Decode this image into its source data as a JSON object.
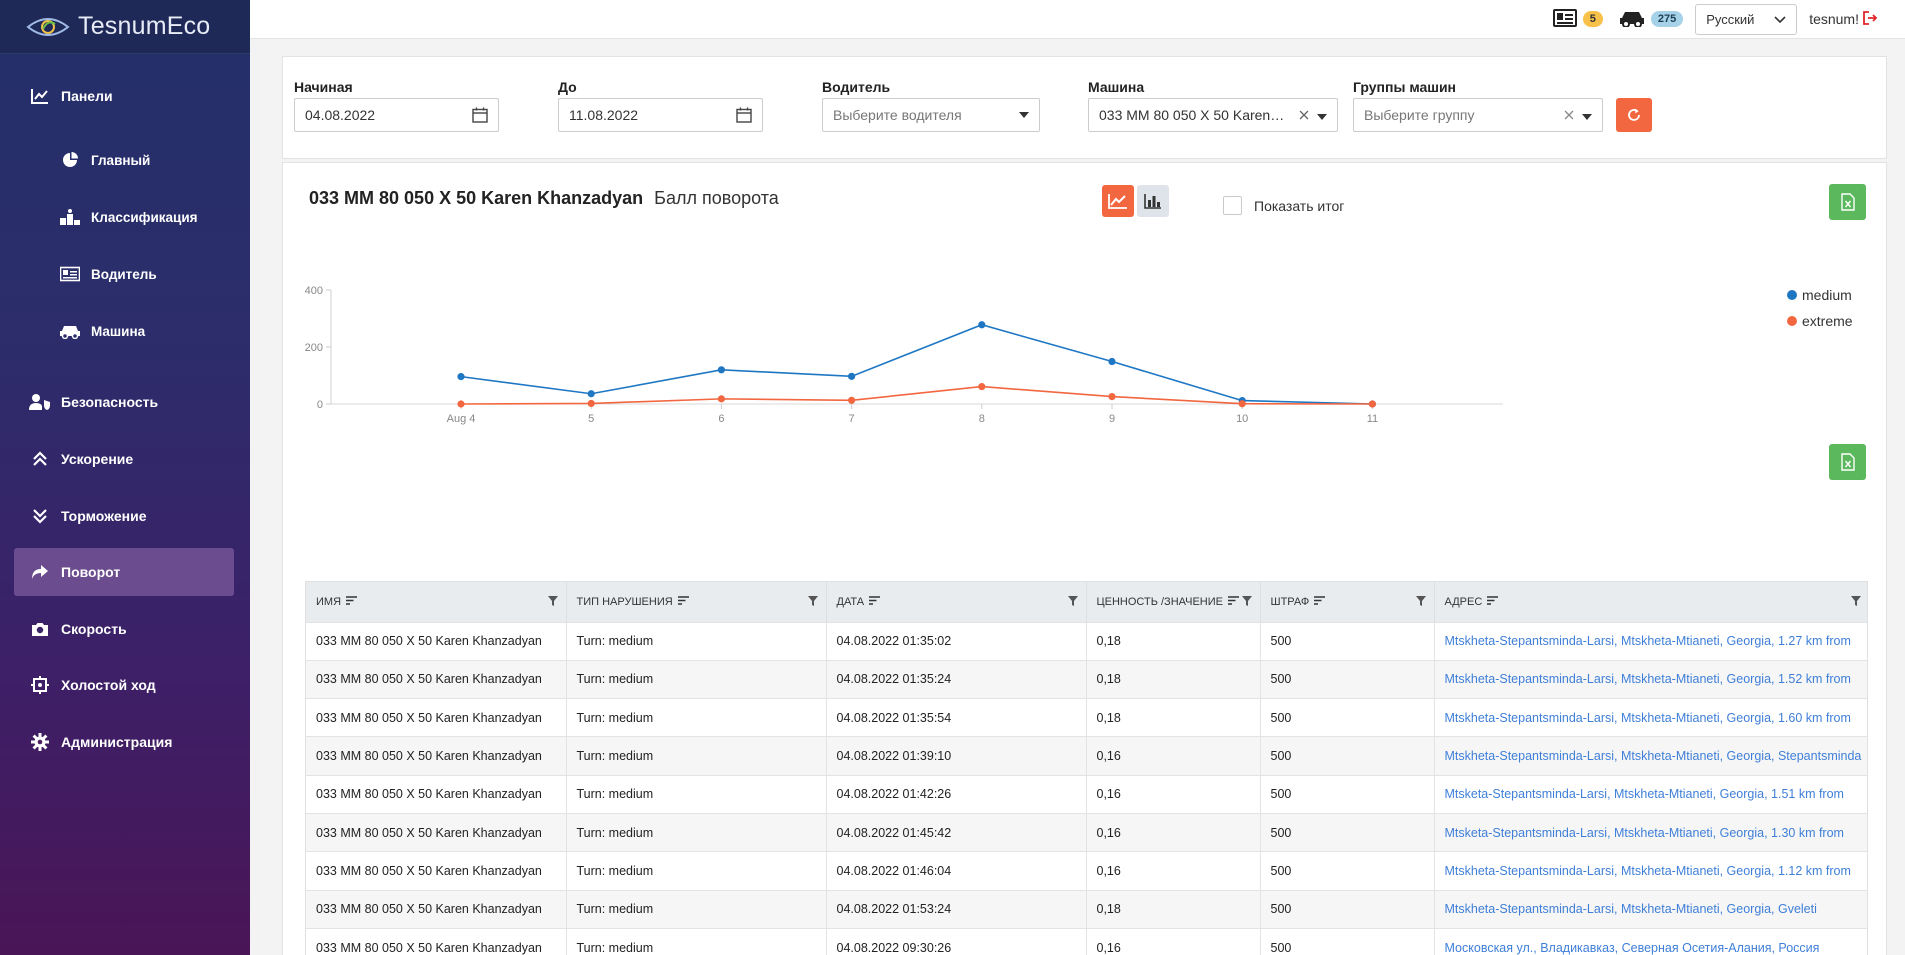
{
  "app": {
    "logo_text": "TesnumEco"
  },
  "sidebar": {
    "items": [
      {
        "label": "Панели",
        "icon": "chart-line-icon"
      },
      {
        "label": "Главный",
        "icon": "pie-chart-icon"
      },
      {
        "label": "Классификация",
        "icon": "podium-icon"
      },
      {
        "label": "Водитель",
        "icon": "id-card-icon"
      },
      {
        "label": "Машина",
        "icon": "car-icon"
      },
      {
        "label": "Безопасность",
        "icon": "user-shield-icon"
      },
      {
        "label": "Ускорение",
        "icon": "double-chevron-up-icon"
      },
      {
        "label": "Торможение",
        "icon": "double-chevron-down-icon"
      },
      {
        "label": "Поворот",
        "icon": "share-arrow-icon",
        "active": true
      },
      {
        "label": "Скорость",
        "icon": "camera-icon"
      },
      {
        "label": "Холостой ход",
        "icon": "idle-icon"
      },
      {
        "label": "Администрация",
        "icon": "gear-icon"
      }
    ]
  },
  "topbar": {
    "drivers_count": "5",
    "cars_count": "275",
    "language": "Русский",
    "username": "tesnum!"
  },
  "filters": {
    "start_label": "Начиная",
    "start_value": "04.08.2022",
    "end_label": "До",
    "end_value": "11.08.2022",
    "driver_label": "Водитель",
    "driver_placeholder": "Выберите водителя",
    "car_label": "Машина",
    "car_value": "033 MM 80 050 X 50 Karen…",
    "groups_label": "Группы машин",
    "groups_placeholder": "Выберите группу"
  },
  "chart_header": {
    "title_bold": "033 MM 80 050 X 50 Karen Khanzadyan",
    "title_sub": "Балл поворота",
    "show_total_label": "Показать итог"
  },
  "chart_data": {
    "type": "line",
    "categories": [
      "Aug 4",
      "5",
      "6",
      "7",
      "8",
      "9",
      "10",
      "11"
    ],
    "series": [
      {
        "name": "medium",
        "color": "#1f77c4",
        "values": [
          96,
          36,
          120,
          97,
          278,
          149,
          12,
          0
        ]
      },
      {
        "name": "extreme",
        "color": "#f26740",
        "values": [
          0,
          2,
          18,
          13,
          61,
          26,
          1,
          0
        ]
      }
    ],
    "yticks": [
      0,
      200,
      400
    ],
    "ylim": [
      0,
      400
    ],
    "legend_position": "right",
    "grid": false
  },
  "table": {
    "headers": [
      "Имя",
      "Тип нарушения",
      "Дата",
      "Ценность /Значение",
      "Штраф",
      "Адрес"
    ],
    "rows": [
      [
        "033 MM 80 050 X 50 Karen Khanzadyan",
        "Turn: medium",
        "04.08.2022 01:35:02",
        "0,18",
        "500",
        "Mtskheta-Stepantsminda-Larsi, Mtskheta-Mtianeti, Georgia, 1.27 km from"
      ],
      [
        "033 MM 80 050 X 50 Karen Khanzadyan",
        "Turn: medium",
        "04.08.2022 01:35:24",
        "0,18",
        "500",
        "Mtskheta-Stepantsminda-Larsi, Mtskheta-Mtianeti, Georgia, 1.52 km from"
      ],
      [
        "033 MM 80 050 X 50 Karen Khanzadyan",
        "Turn: medium",
        "04.08.2022 01:35:54",
        "0,18",
        "500",
        "Mtskheta-Stepantsminda-Larsi, Mtskheta-Mtianeti, Georgia, 1.60 km from"
      ],
      [
        "033 MM 80 050 X 50 Karen Khanzadyan",
        "Turn: medium",
        "04.08.2022 01:39:10",
        "0,16",
        "500",
        "Mtskheta-Stepantsminda-Larsi, Mtskheta-Mtianeti, Georgia, Stepantsminda"
      ],
      [
        "033 MM 80 050 X 50 Karen Khanzadyan",
        "Turn: medium",
        "04.08.2022 01:42:26",
        "0,16",
        "500",
        "Mtsketa-Stepantsminda-Larsi, Mtskheta-Mtianeti, Georgia, 1.51 km from"
      ],
      [
        "033 MM 80 050 X 50 Karen Khanzadyan",
        "Turn: medium",
        "04.08.2022 01:45:42",
        "0,16",
        "500",
        "Mtsketa-Stepantsminda-Larsi, Mtskheta-Mtianeti, Georgia, 1.30 km from"
      ],
      [
        "033 MM 80 050 X 50 Karen Khanzadyan",
        "Turn: medium",
        "04.08.2022 01:46:04",
        "0,16",
        "500",
        "Mtskheta-Stepantsminda-Larsi, Mtskheta-Mtianeti, Georgia, 1.12 km from"
      ],
      [
        "033 MM 80 050 X 50 Karen Khanzadyan",
        "Turn: medium",
        "04.08.2022 01:53:24",
        "0,18",
        "500",
        "Mtskheta-Stepantsminda-Larsi, Mtskheta-Mtianeti, Georgia, Gveleti"
      ],
      [
        "033 MM 80 050 X 50 Karen Khanzadyan",
        "Turn: medium",
        "04.08.2022 09:30:26",
        "0,16",
        "500",
        "Московская ул., Владикавказ, Северная Осетия-Алания, Россия"
      ]
    ]
  },
  "colors": {
    "accent": "#f26740",
    "excel": "#5cb85c",
    "link": "#3f7fd8"
  }
}
